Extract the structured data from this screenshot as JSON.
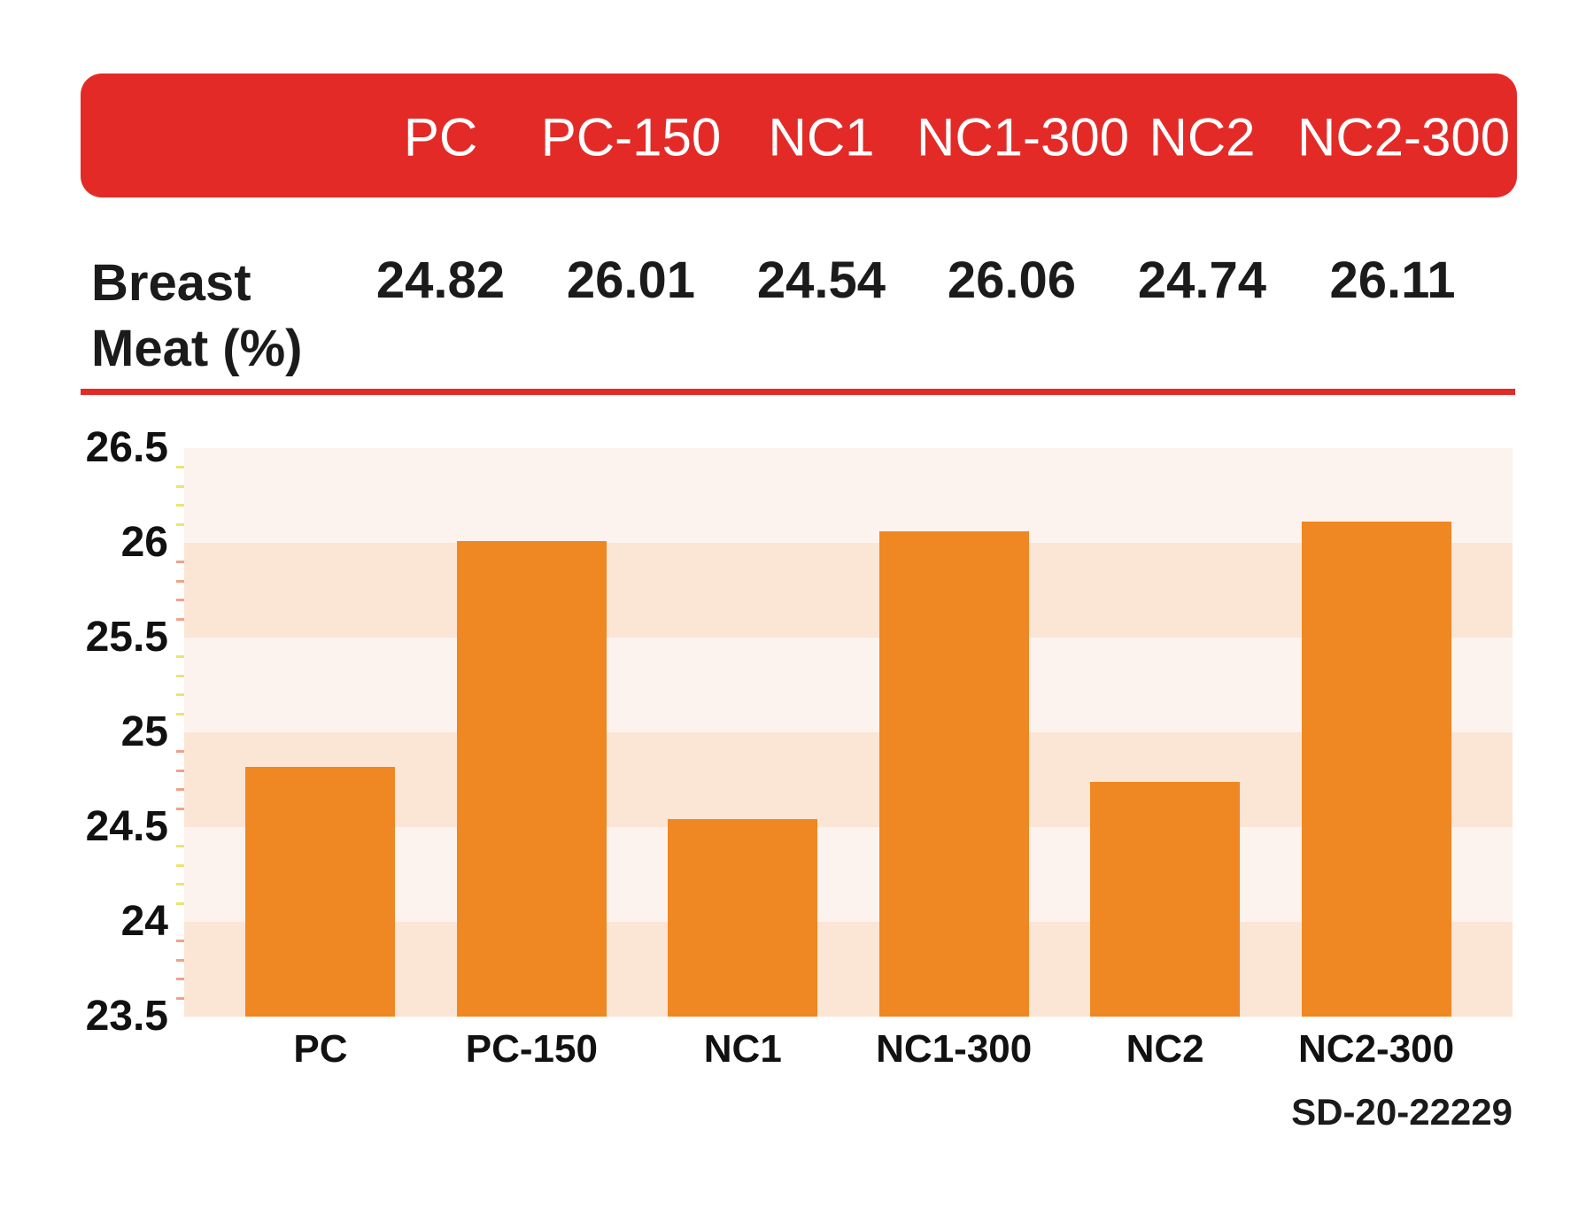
{
  "table": {
    "header_labels": [
      "PC",
      "PC-150",
      "NC1",
      "NC1-300",
      "NC2",
      "NC2-300"
    ],
    "row_label_line1": "Breast",
    "row_label_line2": "Meat (%)",
    "values": [
      "24.82",
      "26.01",
      "24.54",
      "26.06",
      "24.74",
      "26.11"
    ]
  },
  "chart_data": {
    "type": "bar",
    "title": "",
    "xlabel": "",
    "ylabel": "",
    "categories": [
      "PC",
      "PC-150",
      "NC1",
      "NC1-300",
      "NC2",
      "NC2-300"
    ],
    "values": [
      24.82,
      26.01,
      24.54,
      26.06,
      24.74,
      26.11
    ],
    "ylim": [
      23.5,
      26.5
    ],
    "ytick_step": 0.5,
    "ytick_labels": [
      "26.5",
      "26",
      "25.5",
      "25",
      "24.5",
      "24",
      "23.5"
    ],
    "grid": "striped-horizontal-bands",
    "legend": "none"
  },
  "footnote": "SD-20-22229",
  "colors": {
    "red": "#e42a27",
    "orange": "#ef8722",
    "band_light": "#fdf3ee",
    "band_dark": "#fbe5d5",
    "tick_yellow": "#ece46f",
    "tick_salmon": "#eda389",
    "text": "#1b1b1b",
    "header_text": "#ffffff"
  }
}
